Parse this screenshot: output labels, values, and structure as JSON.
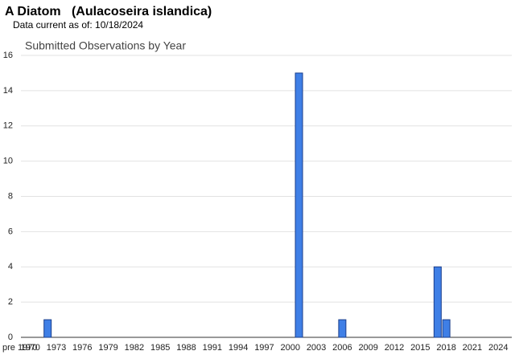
{
  "chart_data": {
    "type": "bar",
    "title": "A Diatom   (Aulacoseira islandica)",
    "subtitle": "Data current as of: 10/18/2024",
    "chart_title": "Submitted Observations by Year",
    "categories": [
      "pre 1970",
      "1970",
      null,
      null,
      "1973",
      null,
      null,
      "1976",
      null,
      null,
      "1979",
      null,
      null,
      "1982",
      null,
      null,
      "1985",
      null,
      null,
      "1988",
      null,
      null,
      "1991",
      null,
      null,
      "1994",
      null,
      null,
      "1997",
      null,
      null,
      "2000",
      null,
      null,
      "2003",
      null,
      null,
      "2006",
      null,
      null,
      "2009",
      null,
      null,
      "2012",
      null,
      null,
      "2015",
      null,
      null,
      "2018",
      null,
      null,
      "2021",
      null,
      null,
      "2024"
    ],
    "values": [
      0,
      0,
      0,
      1,
      0,
      0,
      0,
      0,
      0,
      0,
      0,
      0,
      0,
      0,
      0,
      0,
      0,
      0,
      0,
      0,
      0,
      0,
      0,
      0,
      0,
      0,
      0,
      0,
      0,
      0,
      0,
      0,
      15,
      0,
      0,
      0,
      0,
      1,
      0,
      0,
      0,
      0,
      0,
      0,
      0,
      0,
      0,
      0,
      4,
      1,
      0,
      0,
      0,
      0,
      0,
      0
    ],
    "color": "#3f7fe6",
    "ylim": [
      0,
      16
    ],
    "yticks": [
      0,
      2,
      4,
      6,
      8,
      10,
      12,
      14,
      16
    ],
    "grid": true
  }
}
